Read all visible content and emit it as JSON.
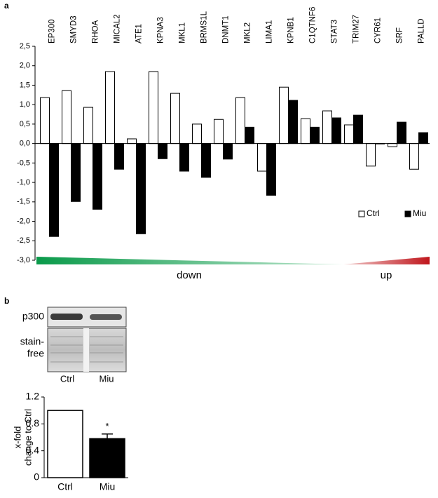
{
  "chart_data": [
    {
      "type": "bar",
      "panel": "a",
      "categories": [
        "EP300",
        "SMYD3",
        "RHOA",
        "MICAL2",
        "ATE1",
        "KPNA3",
        "MKL1",
        "BRMS1L",
        "DNMT1",
        "MKL2",
        "LIMA1",
        "KPNB1",
        "C1QTNF6",
        "STAT3",
        "TRIM27",
        "CYR61",
        "SRF",
        "PALLD"
      ],
      "series": [
        {
          "name": "Ctrl",
          "color": "#ffffff",
          "values": [
            1.18,
            1.36,
            0.93,
            1.85,
            0.12,
            1.85,
            1.29,
            0.5,
            0.62,
            1.18,
            -0.71,
            1.45,
            0.64,
            0.84,
            0.48,
            -0.58,
            -0.08,
            -0.66
          ]
        },
        {
          "name": "Miu",
          "color": "#000000",
          "values": [
            -2.39,
            -1.49,
            -1.69,
            -0.66,
            -2.32,
            -0.39,
            -0.71,
            -0.87,
            -0.4,
            0.42,
            -1.33,
            1.11,
            0.42,
            0.66,
            0.73,
            -0.01,
            0.55,
            0.28
          ]
        }
      ],
      "ylim": [
        -3,
        2.5
      ],
      "yticks": [
        {
          "value": -3,
          "label": "-3,0"
        },
        {
          "value": -2.5,
          "label": "-2,5"
        },
        {
          "value": -2,
          "label": "-2,0"
        },
        {
          "value": -1.5,
          "label": "-1,5"
        },
        {
          "value": -1,
          "label": "-1,0"
        },
        {
          "value": -0.5,
          "label": "-0,5"
        },
        {
          "value": 0,
          "label": "0,0"
        },
        {
          "value": 0.5,
          "label": "0,5"
        },
        {
          "value": 1,
          "label": "1,0"
        },
        {
          "value": 1.5,
          "label": "1,5"
        },
        {
          "value": 2,
          "label": "2,0"
        },
        {
          "value": 2.5,
          "label": "2,5"
        }
      ],
      "legend": "lower right",
      "annotations": [
        "down",
        "up"
      ]
    },
    {
      "type": "bar",
      "panel": "b",
      "ylabel": [
        "x-fold",
        "change to Ctrl"
      ],
      "categories": [
        "Ctrl",
        "Miu"
      ],
      "values": [
        1.0,
        0.58
      ],
      "errors": [
        null,
        0.07
      ],
      "colors": [
        "#ffffff",
        "#000000"
      ],
      "ylim": [
        0,
        1.2
      ],
      "yticks": [
        0,
        0.4,
        0.8,
        1.2
      ],
      "significance": [
        null,
        "*"
      ]
    }
  ],
  "blot": {
    "rows": [
      "p300",
      [
        "stain-",
        "free"
      ]
    ],
    "lanes": [
      "Ctrl",
      "Miu"
    ]
  }
}
